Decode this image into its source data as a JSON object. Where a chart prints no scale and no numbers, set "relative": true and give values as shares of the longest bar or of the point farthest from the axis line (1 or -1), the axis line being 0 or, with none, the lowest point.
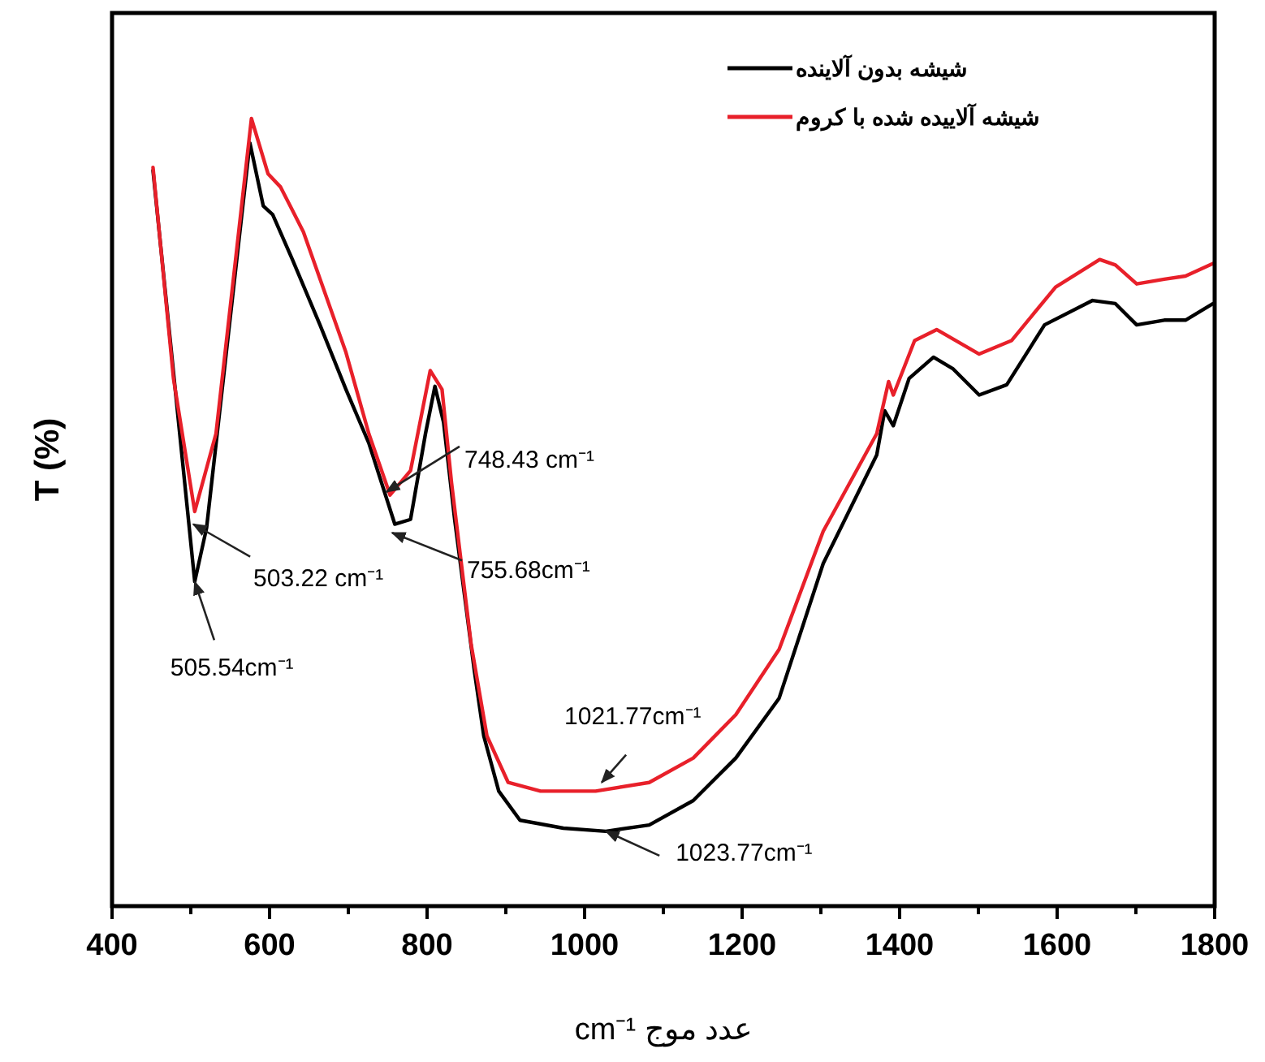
{
  "chart_data": {
    "type": "line",
    "xlabel": "عدد موج cm⁻¹",
    "ylabel": "T (%)",
    "relative": true,
    "tick_labels": "x",
    "legend": "top right",
    "xlim": [
      400,
      1800
    ],
    "xticks": [
      400,
      {
        "value": 500,
        "label": null
      },
      600,
      {
        "value": 700,
        "label": null
      },
      800,
      {
        "value": 900,
        "label": null
      },
      1000,
      {
        "value": 1100,
        "label": null
      },
      1200,
      {
        "value": 1300,
        "label": null
      },
      1400,
      {
        "value": 1500,
        "label": null
      },
      1600,
      {
        "value": 1700,
        "label": null
      },
      1800
    ],
    "series": [
      {
        "name": "شیشه بدون آلاینده",
        "color": "#000000",
        "x": [
          452,
          505,
          520,
          575,
          592,
          604,
          629,
          664,
          697,
          726,
          759,
          779,
          798,
          810,
          821,
          835,
          860,
          872,
          891,
          918,
          973,
          1027,
          1082,
          1138,
          1192,
          1247,
          1303,
          1371,
          1381,
          1392,
          1412,
          1443,
          1468,
          1501,
          1536,
          1584,
          1645,
          1674,
          1701,
          1736,
          1763,
          1798
        ],
        "values": [
          0.934,
          0.412,
          0.48,
          0.969,
          0.889,
          0.878,
          0.821,
          0.738,
          0.656,
          0.588,
          0.485,
          0.491,
          0.6,
          0.66,
          0.614,
          0.491,
          0.299,
          0.216,
          0.146,
          0.109,
          0.099,
          0.095,
          0.103,
          0.134,
          0.188,
          0.264,
          0.435,
          0.573,
          0.629,
          0.61,
          0.67,
          0.697,
          0.682,
          0.649,
          0.662,
          0.738,
          0.769,
          0.765,
          0.738,
          0.744,
          0.744,
          0.765
        ]
      },
      {
        "name": "شیشه آلاییده شده با کروم",
        "color": "#e8202a",
        "x": [
          452,
          478,
          505,
          532,
          577,
          598,
          614,
          643,
          697,
          726,
          753,
          779,
          804,
          819,
          831,
          856,
          876,
          903,
          944,
          1014,
          1082,
          1138,
          1192,
          1247,
          1303,
          1371,
          1386,
          1392,
          1419,
          1447,
          1501,
          1542,
          1598,
          1654,
          1674,
          1701,
          1736,
          1763,
          1798
        ],
        "values": [
          0.938,
          0.67,
          0.501,
          0.6,
          1.0,
          0.93,
          0.913,
          0.856,
          0.703,
          0.6,
          0.522,
          0.553,
          0.68,
          0.656,
          0.538,
          0.332,
          0.216,
          0.157,
          0.146,
          0.146,
          0.157,
          0.188,
          0.243,
          0.326,
          0.476,
          0.6,
          0.666,
          0.649,
          0.718,
          0.732,
          0.701,
          0.718,
          0.786,
          0.821,
          0.814,
          0.79,
          0.796,
          0.8,
          0.816
        ]
      }
    ],
    "annotations": [
      {
        "text": "505.54cm⁻¹",
        "x": 505,
        "y": 0.412
      },
      {
        "text": "503.22 cm⁻¹",
        "x": 503.22,
        "y": 0.485
      },
      {
        "text": "748.43 cm⁻¹",
        "x": 748.43,
        "y": 0.526
      },
      {
        "text": "755.68cm⁻¹",
        "x": 755.68,
        "y": 0.474
      },
      {
        "text": "1021.77cm⁻¹",
        "x": 1021.77,
        "y": 0.157
      },
      {
        "text": "1023.77cm⁻¹",
        "x": 1027,
        "y": 0.095
      }
    ]
  }
}
